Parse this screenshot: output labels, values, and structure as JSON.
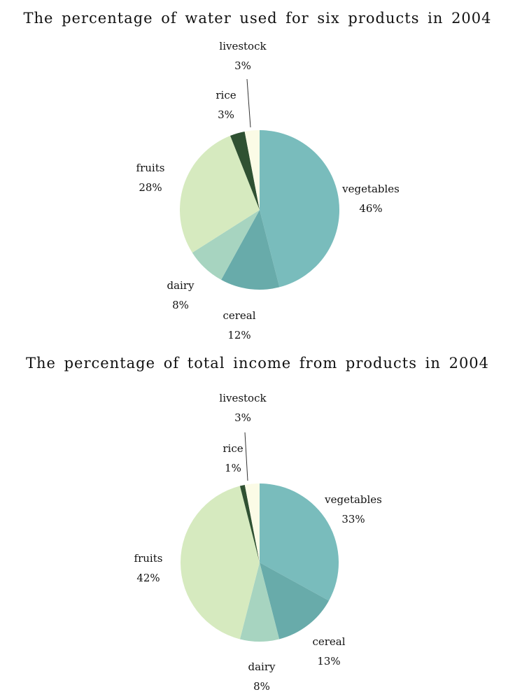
{
  "chart_data": [
    {
      "type": "pie",
      "title": "The percentage of water used for six products in 2004",
      "slices": [
        {
          "label": "vegetables",
          "value": 46,
          "value_label": "46%",
          "color": "#79bcbc"
        },
        {
          "label": "cereal",
          "value": 12,
          "value_label": "12%",
          "color": "#68abaa"
        },
        {
          "label": "dairy",
          "value": 8,
          "value_label": "8%",
          "color": "#a7d4c0"
        },
        {
          "label": "fruits",
          "value": 28,
          "value_label": "28%",
          "color": "#d6eabf"
        },
        {
          "label": "rice",
          "value": 3,
          "value_label": "3%",
          "color": "#2f5132"
        },
        {
          "label": "livestock",
          "value": 3,
          "value_label": "3%",
          "color": "#fbfbe6"
        }
      ]
    },
    {
      "type": "pie",
      "title": "The percentage of total income from products in 2004",
      "slices": [
        {
          "label": "vegetables",
          "value": 33,
          "value_label": "33%",
          "color": "#79bcbc"
        },
        {
          "label": "cereal",
          "value": 13,
          "value_label": "13%",
          "color": "#68abaa"
        },
        {
          "label": "dairy",
          "value": 8,
          "value_label": "8%",
          "color": "#a7d4c0"
        },
        {
          "label": "fruits",
          "value": 42,
          "value_label": "42%",
          "color": "#d6eabf"
        },
        {
          "label": "rice",
          "value": 1,
          "value_label": "1%",
          "color": "#2f5132"
        },
        {
          "label": "livestock",
          "value": 3,
          "value_label": "3%",
          "color": "#fbfbe6"
        }
      ]
    }
  ]
}
